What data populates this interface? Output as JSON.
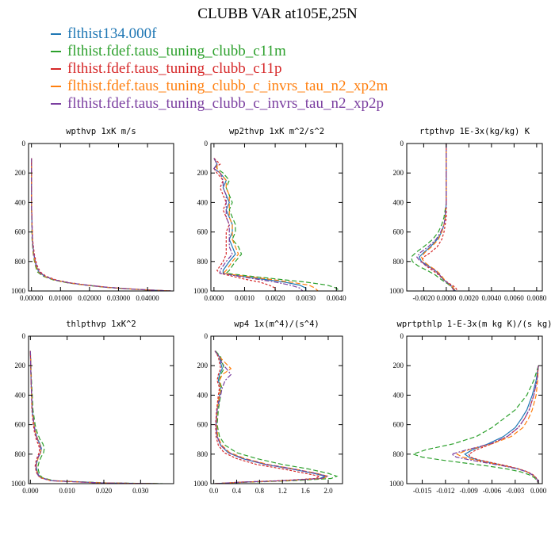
{
  "title": "CLUBB VAR at105E,25N",
  "legend": [
    {
      "label": "flthist134.000f",
      "color": "#1f77b4"
    },
    {
      "label": "flthist.fdef.taus_tuning_clubb_c11m",
      "color": "#2ca02c"
    },
    {
      "label": "flthist.fdef.taus_tuning_clubb_c11p",
      "color": "#d62728"
    },
    {
      "label": "flthist.fdef.taus_tuning_clubb_c_invrs_tau_n2_xp2m",
      "color": "#ff7f0e"
    },
    {
      "label": "flthist.fdef.taus_tuning_clubb_c_invrs_tau_n2_xp2p",
      "color": "#7b3fa0"
    }
  ],
  "chart_data": [
    {
      "type": "line",
      "title": "wpthvp  1xK m/s",
      "xlim": [
        -0.001,
        0.049
      ],
      "ylim": [
        1000,
        0
      ],
      "y_reversed": true,
      "xticks": [
        0.0,
        0.01,
        0.02,
        0.03,
        0.04
      ],
      "xtick_labels": [
        "0.00000",
        "0.01000",
        "0.02000",
        "0.03000",
        "0.04000"
      ],
      "yticks": [
        0,
        200,
        400,
        600,
        800,
        1000
      ],
      "y": [
        100,
        400,
        650,
        750,
        820,
        870,
        900,
        925,
        945,
        960,
        975,
        985,
        993,
        1000
      ],
      "series": [
        {
          "x": [
            0,
            0,
            0.0003,
            0.0008,
            0.0015,
            0.0025,
            0.0045,
            0.008,
            0.013,
            0.019,
            0.026,
            0.033,
            0.04,
            0.048
          ]
        },
        {
          "x": [
            0,
            0,
            0.0002,
            0.0006,
            0.0012,
            0.002,
            0.004,
            0.0075,
            0.0125,
            0.0185,
            0.0255,
            0.0325,
            0.0395,
            0.0475
          ]
        },
        {
          "x": [
            0,
            0,
            0.0004,
            0.001,
            0.0018,
            0.003,
            0.005,
            0.0085,
            0.0135,
            0.0195,
            0.0265,
            0.0335,
            0.0405,
            0.0485
          ]
        },
        {
          "x": [
            0,
            0,
            0.0003,
            0.0007,
            0.0014,
            0.0024,
            0.0044,
            0.0079,
            0.0129,
            0.0189,
            0.0259,
            0.0329,
            0.0399,
            0.0479
          ]
        },
        {
          "x": [
            0,
            0,
            0.0003,
            0.0008,
            0.0016,
            0.0026,
            0.0046,
            0.0081,
            0.0131,
            0.0191,
            0.0261,
            0.0331,
            0.0401,
            0.0481
          ]
        }
      ]
    },
    {
      "type": "line",
      "title": "wp2thvp  1xK m^2/s^2",
      "xlim": [
        -0.0001,
        0.0042
      ],
      "ylim": [
        1000,
        0
      ],
      "y_reversed": true,
      "xticks": [
        0.0,
        0.001,
        0.002,
        0.003,
        0.004
      ],
      "xtick_labels": [
        "0.0000",
        "0.0010",
        "0.0020",
        "0.0030",
        "0.0040"
      ],
      "yticks": [
        0,
        200,
        400,
        600,
        800,
        1000
      ],
      "y": [
        100,
        140,
        170,
        200,
        250,
        300,
        350,
        400,
        450,
        500,
        550,
        600,
        650,
        700,
        750,
        800,
        830,
        860,
        880,
        900,
        920,
        940,
        960,
        980,
        1000
      ],
      "series": [
        {
          "x": [
            0,
            0.0001,
            0,
            0.0002,
            0.0004,
            0.0003,
            0.0004,
            0.0005,
            0.0004,
            0.0005,
            0.0006,
            0.0006,
            0.0005,
            0.0006,
            0.0007,
            0.0005,
            0.0004,
            0.0003,
            0.0003,
            0.0009,
            0.0016,
            0.0023,
            0.0028,
            0.003,
            0.003
          ]
        },
        {
          "x": [
            0,
            0.0001,
            0.0001,
            0.0003,
            0.0005,
            0.0004,
            0.0005,
            0.0006,
            0.0005,
            0.0006,
            0.0007,
            0.0007,
            0.0006,
            0.0008,
            0.0009,
            0.0007,
            0.0006,
            0.0005,
            0.0004,
            0.0012,
            0.0021,
            0.003,
            0.0037,
            0.004,
            0.0041
          ]
        },
        {
          "x": [
            0,
            0.0002,
            0,
            0.0001,
            0.0003,
            0.0002,
            0.0003,
            0.0004,
            0.0003,
            0.0004,
            0.0005,
            0.0004,
            0.0004,
            0.0004,
            0.0004,
            0.0003,
            0.0002,
            0.0001,
            0.0002,
            0.0006,
            0.001,
            0.0015,
            0.0018,
            0.002,
            0.002
          ]
        },
        {
          "x": [
            0,
            0.0001,
            0.0001,
            0.0002,
            0.0004,
            0.0004,
            0.0005,
            0.0005,
            0.0005,
            0.0005,
            0.0006,
            0.0006,
            0.0006,
            0.0007,
            0.0008,
            0.0006,
            0.0005,
            0.0004,
            0.0003,
            0.001,
            0.0018,
            0.0025,
            0.0031,
            0.0033,
            0.0034
          ]
        },
        {
          "x": [
            0,
            0.0001,
            0,
            0.0002,
            0.0003,
            0.0003,
            0.0004,
            0.0004,
            0.0004,
            0.0004,
            0.0005,
            0.0005,
            0.0005,
            0.0005,
            0.0006,
            0.0004,
            0.0003,
            0.0002,
            0.0002,
            0.0008,
            0.0014,
            0.002,
            0.0025,
            0.0028,
            0.0029
          ]
        }
      ]
    },
    {
      "type": "line",
      "title": "rtpthvp  1E-3x(kg/kg) K",
      "xlim": [
        -0.0035,
        0.0085
      ],
      "ylim": [
        1000,
        0
      ],
      "y_reversed": true,
      "xticks": [
        -0.002,
        0.0,
        0.002,
        0.004,
        0.006,
        0.008
      ],
      "xtick_labels": [
        "-0.0020",
        "0.0000",
        "0.0020",
        "0.0040",
        "0.0060",
        "0.0080"
      ],
      "yticks": [
        0,
        200,
        400,
        600,
        800,
        1000
      ],
      "y": [
        0,
        200,
        300,
        400,
        500,
        550,
        600,
        650,
        700,
        740,
        770,
        800,
        830,
        860,
        890,
        920,
        950,
        975,
        1000
      ],
      "series": [
        {
          "x": [
            0,
            0,
            0,
            0,
            -0.0001,
            -0.0002,
            -0.0004,
            -0.0008,
            -0.0014,
            -0.002,
            -0.0024,
            -0.0022,
            -0.0016,
            -0.001,
            -0.0006,
            -0.0003,
            0.0002,
            0.0006,
            0.0008
          ]
        },
        {
          "x": [
            0,
            0,
            0,
            0,
            -0.0002,
            -0.0004,
            -0.0007,
            -0.0012,
            -0.002,
            -0.0027,
            -0.0031,
            -0.003,
            -0.0025,
            -0.0017,
            -0.001,
            -0.0005,
            0.0001,
            0.0005,
            0.0007
          ]
        },
        {
          "x": [
            0,
            0,
            0,
            0,
            0,
            -0.0001,
            -0.0002,
            -0.0004,
            -0.0008,
            -0.0014,
            -0.002,
            -0.0022,
            -0.0018,
            -0.0012,
            -0.0007,
            -0.0003,
            0.0003,
            0.0008,
            0.001
          ]
        },
        {
          "x": [
            0,
            0,
            0,
            0,
            -0.0001,
            -0.0002,
            -0.0004,
            -0.0007,
            -0.0013,
            -0.0019,
            -0.0022,
            -0.002,
            -0.0015,
            -0.0009,
            -0.0005,
            -0.0002,
            0.0002,
            0.0006,
            0.0008
          ]
        },
        {
          "x": [
            0,
            0,
            0,
            0,
            -0.0001,
            -0.0002,
            -0.0005,
            -0.0009,
            -0.0016,
            -0.0023,
            -0.0026,
            -0.0023,
            -0.0017,
            -0.001,
            -0.0006,
            -0.0003,
            0.0002,
            0.0005,
            0.0007
          ]
        }
      ]
    },
    {
      "type": "line",
      "title": "thlpthvp  1xK^2",
      "xlim": [
        -0.0005,
        0.039
      ],
      "ylim": [
        1000,
        0
      ],
      "y_reversed": true,
      "xticks": [
        0.0,
        0.01,
        0.02,
        0.03
      ],
      "xtick_labels": [
        "0.000",
        "0.010",
        "0.020",
        "0.030"
      ],
      "yticks": [
        0,
        200,
        400,
        600,
        800,
        1000
      ],
      "y": [
        100,
        300,
        500,
        600,
        650,
        700,
        730,
        760,
        790,
        820,
        850,
        880,
        910,
        940,
        960,
        980,
        995,
        1000
      ],
      "series": [
        {
          "x": [
            0,
            0.0002,
            0.0005,
            0.001,
            0.0014,
            0.002,
            0.0026,
            0.003,
            0.0028,
            0.0022,
            0.0018,
            0.0016,
            0.0018,
            0.0022,
            0.003,
            0.006,
            0.02,
            0.035
          ]
        },
        {
          "x": [
            0,
            0.0003,
            0.0007,
            0.0013,
            0.0018,
            0.0026,
            0.0034,
            0.0038,
            0.0036,
            0.0029,
            0.0024,
            0.0021,
            0.0022,
            0.0025,
            0.0033,
            0.0065,
            0.021,
            0.036
          ]
        },
        {
          "x": [
            0,
            0.0002,
            0.0004,
            0.0008,
            0.0011,
            0.0016,
            0.0021,
            0.0025,
            0.0024,
            0.0019,
            0.0015,
            0.0013,
            0.0015,
            0.0019,
            0.0027,
            0.0055,
            0.019,
            0.034
          ]
        },
        {
          "x": [
            0,
            0.0002,
            0.0005,
            0.001,
            0.0014,
            0.002,
            0.0025,
            0.0029,
            0.0028,
            0.0022,
            0.0018,
            0.0016,
            0.0017,
            0.0021,
            0.0029,
            0.0058,
            0.0195,
            0.0345
          ]
        },
        {
          "x": [
            0,
            0.0002,
            0.0005,
            0.001,
            0.0013,
            0.0019,
            0.0024,
            0.0028,
            0.0027,
            0.0021,
            0.0017,
            0.0015,
            0.0016,
            0.002,
            0.0028,
            0.0057,
            0.0193,
            0.0343
          ]
        }
      ]
    },
    {
      "type": "line",
      "title": "wp4  1x(m^4)/(s^4)",
      "xlim": [
        -0.05,
        2.25
      ],
      "ylim": [
        1000,
        0
      ],
      "y_reversed": true,
      "xticks": [
        0.0,
        0.4,
        0.8,
        1.2,
        1.6,
        2.0
      ],
      "xtick_labels": [
        "0.0",
        "0.4",
        "0.8",
        "1.2",
        "1.6",
        "2.0"
      ],
      "yticks": [
        0,
        200,
        400,
        600,
        800,
        1000
      ],
      "y": [
        100,
        140,
        180,
        220,
        260,
        300,
        350,
        400,
        500,
        600,
        680,
        740,
        790,
        830,
        870,
        900,
        930,
        950,
        965,
        980,
        990,
        1000
      ],
      "series": [
        {
          "x": [
            0.02,
            0.1,
            0.12,
            0.15,
            0.1,
            0.08,
            0.12,
            0.1,
            0.06,
            0.04,
            0.06,
            0.12,
            0.25,
            0.5,
            0.9,
            1.35,
            1.75,
            1.95,
            1.85,
            1.2,
            0.5,
            0.02
          ]
        },
        {
          "x": [
            0.03,
            0.12,
            0.15,
            0.18,
            0.12,
            0.1,
            0.14,
            0.12,
            0.08,
            0.06,
            0.1,
            0.2,
            0.4,
            0.75,
            1.2,
            1.65,
            2.0,
            2.15,
            2.05,
            1.4,
            0.6,
            0.03
          ]
        },
        {
          "x": [
            0.02,
            0.08,
            0.1,
            0.12,
            0.08,
            0.06,
            0.1,
            0.08,
            0.05,
            0.03,
            0.04,
            0.08,
            0.18,
            0.4,
            0.75,
            1.2,
            1.6,
            1.85,
            1.78,
            1.15,
            0.45,
            0.02
          ]
        },
        {
          "x": [
            0.02,
            0.1,
            0.2,
            0.3,
            0.15,
            0.1,
            0.12,
            0.1,
            0.06,
            0.05,
            0.07,
            0.14,
            0.28,
            0.55,
            0.95,
            1.4,
            1.8,
            2.0,
            1.9,
            1.25,
            0.5,
            0.02
          ]
        },
        {
          "x": [
            0.02,
            0.1,
            0.14,
            0.22,
            0.3,
            0.2,
            0.15,
            0.12,
            0.06,
            0.04,
            0.06,
            0.12,
            0.26,
            0.52,
            0.92,
            1.38,
            1.78,
            1.98,
            1.88,
            1.22,
            0.48,
            0.02
          ]
        }
      ]
    },
    {
      "type": "line",
      "title": "wprtpthlp  1-E-3x(m kg K)/(s kg)",
      "xlim": [
        -0.017,
        0.0005
      ],
      "ylim": [
        1000,
        0
      ],
      "y_reversed": true,
      "xticks": [
        -0.015,
        -0.012,
        -0.009,
        -0.006,
        -0.003,
        0.0
      ],
      "xtick_labels": [
        "-0.015",
        "-0.012",
        "-0.009",
        "-0.006",
        "-0.003",
        "0.000"
      ],
      "yticks": [
        0,
        200,
        400,
        600,
        800,
        1000
      ],
      "y": [
        200,
        300,
        400,
        500,
        560,
        620,
        680,
        730,
        770,
        800,
        820,
        840,
        860,
        880,
        900,
        920,
        940,
        960,
        980,
        1000
      ],
      "series": [
        {
          "x": [
            0,
            -0.0003,
            -0.0008,
            -0.0015,
            -0.0022,
            -0.003,
            -0.0045,
            -0.0065,
            -0.0085,
            -0.0095,
            -0.009,
            -0.0078,
            -0.006,
            -0.0042,
            -0.0026,
            -0.0015,
            -0.0008,
            -0.0003,
            -0.0001,
            0
          ]
        },
        {
          "x": [
            0,
            -0.0006,
            -0.0015,
            -0.003,
            -0.0045,
            -0.006,
            -0.008,
            -0.011,
            -0.0145,
            -0.0162,
            -0.015,
            -0.0125,
            -0.0095,
            -0.0066,
            -0.0041,
            -0.0023,
            -0.0012,
            -0.0005,
            -0.0002,
            0
          ]
        },
        {
          "x": [
            0,
            -0.0002,
            -0.0006,
            -0.0012,
            -0.0018,
            -0.0026,
            -0.004,
            -0.006,
            -0.008,
            -0.009,
            -0.0088,
            -0.0076,
            -0.0058,
            -0.004,
            -0.0025,
            -0.0014,
            -0.0007,
            -0.0003,
            -0.0001,
            0
          ]
        },
        {
          "x": [
            0,
            -0.0001,
            -0.0003,
            -0.0008,
            -0.0013,
            -0.002,
            -0.0035,
            -0.006,
            -0.009,
            -0.0105,
            -0.0098,
            -0.0082,
            -0.0062,
            -0.0043,
            -0.0026,
            -0.0015,
            -0.0008,
            -0.0003,
            -0.0001,
            0
          ]
        },
        {
          "x": [
            0,
            -0.0002,
            -0.0006,
            -0.0012,
            -0.0018,
            -0.0026,
            -0.004,
            -0.0062,
            -0.0092,
            -0.0112,
            -0.0106,
            -0.0088,
            -0.0066,
            -0.0045,
            -0.0027,
            -0.0015,
            -0.0008,
            -0.0003,
            -0.0001,
            0
          ]
        }
      ]
    }
  ]
}
